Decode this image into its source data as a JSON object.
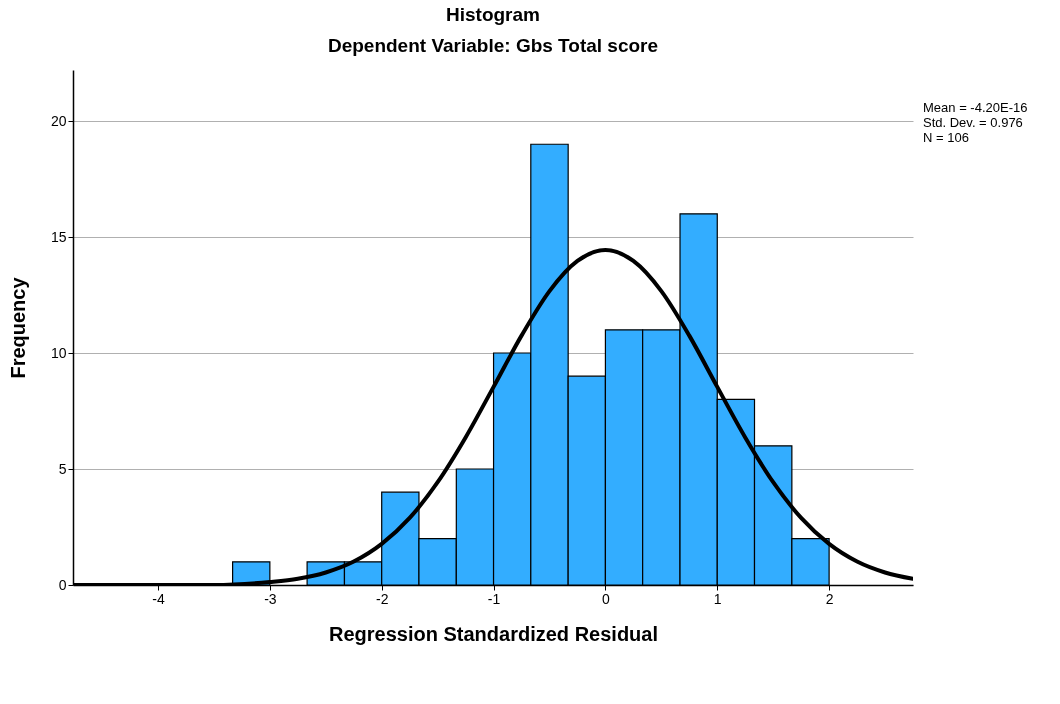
{
  "chart_data": {
    "type": "histogram",
    "title": "Histogram",
    "subtitle": "Dependent Variable: Gbs Total score",
    "xlabel": "Regression Standardized Residual",
    "ylabel": "Frequency",
    "bins": [
      -3.333,
      -3,
      -2.667,
      -2.333,
      -2,
      -1.667,
      -1.333,
      -1,
      -0.667,
      -0.333,
      0,
      0.333,
      0.667,
      1,
      1.333,
      1.667,
      2
    ],
    "values": [
      1,
      0,
      1,
      1,
      4,
      2,
      5,
      10,
      19,
      9,
      11,
      11,
      16,
      8,
      6,
      2
    ],
    "color": "#33adff",
    "series": [
      {
        "type": "line",
        "color": "#000000",
        "x": [
          -4.75,
          -4.5,
          -4,
          -3.5,
          -3,
          -2.75,
          -2.5,
          -2.25,
          -2,
          -1.75,
          -1.5,
          -1.25,
          -1,
          -0.75,
          -0.5,
          -0.25,
          0,
          0.25,
          0.5,
          0.75,
          1,
          1.25,
          1.5,
          1.75,
          2,
          2.25,
          2.5,
          2.75
        ],
        "values": [
          0,
          0,
          0,
          0,
          0.13,
          0.27,
          0.54,
          1.01,
          1.77,
          2.89,
          4.43,
          6.36,
          8.54,
          10.75,
          12.67,
          13.97,
          14.44,
          13.97,
          12.67,
          10.75,
          8.54,
          6.36,
          4.43,
          2.89,
          1.77,
          1.01,
          0.54,
          0.27
        ]
      }
    ],
    "xlim": [
      -4.76,
      2.75
    ],
    "xticks": [
      -4,
      -3,
      -2,
      -1,
      0,
      1,
      2
    ],
    "ylim": [
      0,
      22.2
    ],
    "yticks": [
      0,
      5,
      10,
      15,
      20
    ],
    "grid": "y",
    "annotations": [
      "Mean = -4.20E-16",
      "Std. Dev. = 0.976",
      "N = 106"
    ]
  }
}
